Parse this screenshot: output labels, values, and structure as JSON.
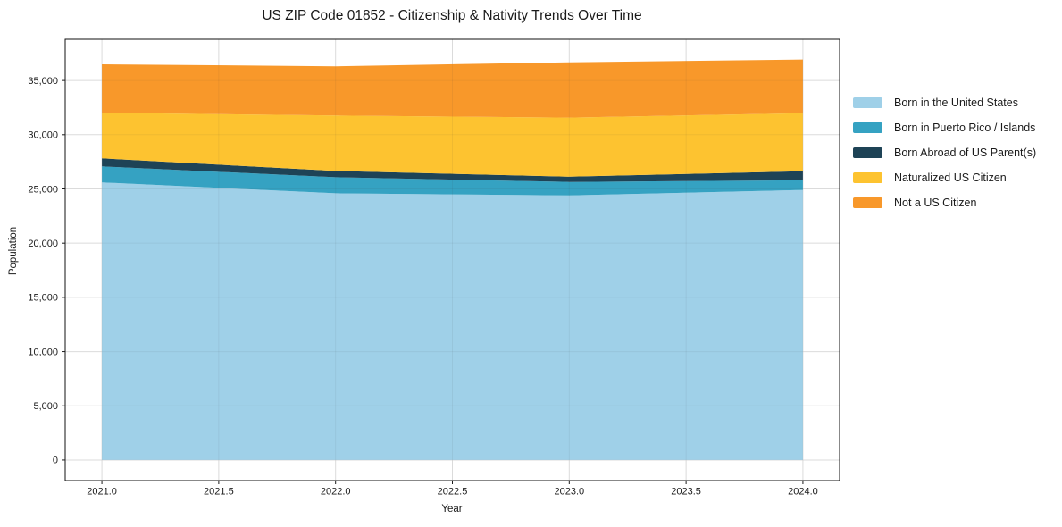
{
  "title": "US ZIP Code 01852 - Citizenship & Nativity Trends Over Time",
  "chart_data": {
    "type": "area",
    "stacked": true,
    "title": "US ZIP Code 01852 - Citizenship & Nativity Trends Over Time",
    "xlabel": "Year",
    "ylabel": "Population",
    "x": [
      2021,
      2022,
      2023,
      2024
    ],
    "series": [
      {
        "name": "Born in the United States",
        "color": "#9fd0e8",
        "values": [
          25600,
          24600,
          24400,
          24900
        ]
      },
      {
        "name": "Born in Puerto Rico / Islands",
        "color": "#35a2c2",
        "values": [
          1480,
          1480,
          1240,
          900
        ]
      },
      {
        "name": "Born Abroad of US Parent(s)",
        "color": "#1e4356",
        "values": [
          740,
          580,
          490,
          830
        ]
      },
      {
        "name": "Naturalized US Citizen",
        "color": "#fdc330",
        "values": [
          4210,
          5110,
          5450,
          5360
        ]
      },
      {
        "name": "Not a US Citizen",
        "color": "#f8982a",
        "values": [
          4460,
          4540,
          5100,
          4950
        ]
      }
    ],
    "xlim": [
      2020.843,
      2024.157
    ],
    "ylim": [
      -1900,
      38800
    ],
    "xticks": [
      {
        "v": 2021.0,
        "label": "2021.0"
      },
      {
        "v": 2021.5,
        "label": "2021.5"
      },
      {
        "v": 2022.0,
        "label": "2022.0"
      },
      {
        "v": 2022.5,
        "label": "2022.5"
      },
      {
        "v": 2023.0,
        "label": "2023.0"
      },
      {
        "v": 2023.5,
        "label": "2023.5"
      },
      {
        "v": 2024.0,
        "label": "2024.0"
      }
    ],
    "yticks": [
      {
        "v": 0,
        "label": "0"
      },
      {
        "v": 5000,
        "label": "5,000"
      },
      {
        "v": 10000,
        "label": "10,000"
      },
      {
        "v": 15000,
        "label": "15,000"
      },
      {
        "v": 20000,
        "label": "20,000"
      },
      {
        "v": 25000,
        "label": "25,000"
      },
      {
        "v": 30000,
        "label": "30,000"
      },
      {
        "v": 35000,
        "label": "35,000"
      }
    ],
    "grid": true,
    "legend_position": "right"
  },
  "colors": {
    "grid": "#e8e8e8",
    "grid_overlay": "rgba(60,60,60,0.07)",
    "spine": "#111111",
    "tick": "#1a1a1a",
    "text": "#1a1a1a"
  }
}
